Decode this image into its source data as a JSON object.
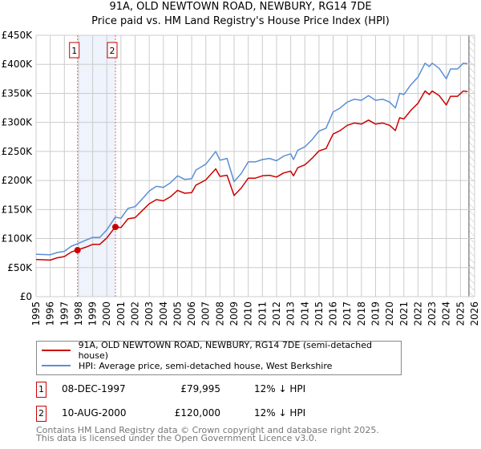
{
  "title": "91A, OLD NEWTOWN ROAD, NEWBURY, RG14 7DE",
  "subtitle": "Price paid vs. HM Land Registry's House Price Index (HPI)",
  "colors": {
    "property": "#cc0000",
    "hpi": "#5b8fd4",
    "shade": "#eef3fc",
    "marker_line": "#ee6666"
  },
  "chart_data": {
    "type": "line",
    "title": "Price paid vs. HM Land Registry's House Price Index (HPI)",
    "xlim": [
      1995,
      2026
    ],
    "ylim": [
      0,
      450000
    ],
    "yticks": [
      0,
      50000,
      100000,
      150000,
      200000,
      250000,
      300000,
      350000,
      400000,
      450000
    ],
    "ytick_labels": [
      "£0",
      "£50K",
      "£100K",
      "£150K",
      "£200K",
      "£250K",
      "£300K",
      "£350K",
      "£400K",
      "£450K"
    ],
    "xticks": [
      1995,
      1996,
      1997,
      1998,
      1999,
      2000,
      2001,
      2002,
      2003,
      2004,
      2005,
      2006,
      2007,
      2008,
      2009,
      2010,
      2011,
      2012,
      2013,
      2014,
      2015,
      2016,
      2017,
      2018,
      2019,
      2020,
      2021,
      2022,
      2023,
      2024,
      2025,
      2026
    ],
    "grid": true,
    "forecast_hatch_from": 2025.6,
    "x": [
      1995,
      1996,
      1996.5,
      1997,
      1997.5,
      1998,
      1998.5,
      1999,
      1999.5,
      2000,
      2000.6,
      2001,
      2001.5,
      2002,
      2002.5,
      2003,
      2003.5,
      2004,
      2004.5,
      2005,
      2005.5,
      2006,
      2006.3,
      2007,
      2007.7,
      2008,
      2008.5,
      2009,
      2009.5,
      2010,
      2010.5,
      2011,
      2011.5,
      2012,
      2012.5,
      2013,
      2013.2,
      2013.5,
      2014,
      2014.5,
      2015,
      2015.5,
      2016,
      2016.5,
      2017,
      2017.5,
      2018,
      2018.5,
      2019,
      2019.5,
      2020,
      2020.4,
      2020.7,
      2021,
      2021.5,
      2022,
      2022.5,
      2022.8,
      2023,
      2023.5,
      2024,
      2024.3,
      2024.8,
      2025.2,
      2025.5
    ],
    "series": [
      {
        "name": "91A, OLD NEWTOWN ROAD, NEWBURY, RG14 7DE (semi-detached house)",
        "color": "#cc0000",
        "values": [
          64000,
          63000,
          67000,
          69000,
          77000,
          81000,
          85000,
          90000,
          90000,
          101000,
          120000,
          119000,
          134000,
          136000,
          148000,
          160000,
          167000,
          165000,
          172000,
          183000,
          178000,
          179000,
          192000,
          201000,
          220000,
          207000,
          209000,
          174000,
          187000,
          204000,
          204000,
          208000,
          209000,
          206000,
          213000,
          216000,
          208000,
          222000,
          227000,
          238000,
          251000,
          255000,
          280000,
          286000,
          295000,
          299000,
          297000,
          304000,
          297000,
          299000,
          295000,
          286000,
          308000,
          306000,
          321000,
          333000,
          354000,
          348000,
          354000,
          346000,
          330000,
          345000,
          345000,
          354000,
          353000
        ]
      },
      {
        "name": "HPI: Average price, semi-detached house, West Berkshire",
        "color": "#5b8fd4",
        "values": [
          73000,
          72000,
          76000,
          78000,
          87000,
          92000,
          97000,
          102000,
          102000,
          115000,
          137000,
          135000,
          152000,
          155000,
          168000,
          182000,
          190000,
          188000,
          196000,
          208000,
          202000,
          203000,
          218000,
          228000,
          250000,
          235000,
          238000,
          198000,
          212000,
          232000,
          232000,
          236000,
          238000,
          234000,
          242000,
          246000,
          236000,
          252000,
          258000,
          270000,
          285000,
          290000,
          318000,
          325000,
          335000,
          340000,
          338000,
          346000,
          338000,
          340000,
          335000,
          325000,
          350000,
          348000,
          365000,
          378000,
          402000,
          396000,
          402000,
          393000,
          375000,
          392000,
          392000,
          402000,
          401000
        ]
      }
    ],
    "sales": [
      {
        "label": "1",
        "x": 1997.93,
        "value": 79995
      },
      {
        "label": "2",
        "x": 2000.61,
        "value": 120000
      }
    ]
  },
  "legend": {
    "property": "91A, OLD NEWTOWN ROAD, NEWBURY, RG14 7DE (semi-detached house)",
    "hpi": "HPI: Average price, semi-detached house, West Berkshire"
  },
  "transactions": [
    {
      "num": "1",
      "date": "08-DEC-1997",
      "price": "£79,995",
      "delta": "12% ↓ HPI"
    },
    {
      "num": "2",
      "date": "10-AUG-2000",
      "price": "£120,000",
      "delta": "12% ↓ HPI"
    }
  ],
  "footer": {
    "line1": "Contains HM Land Registry data © Crown copyright and database right 2025.",
    "line2": "This data is licensed under the Open Government Licence v3.0."
  }
}
